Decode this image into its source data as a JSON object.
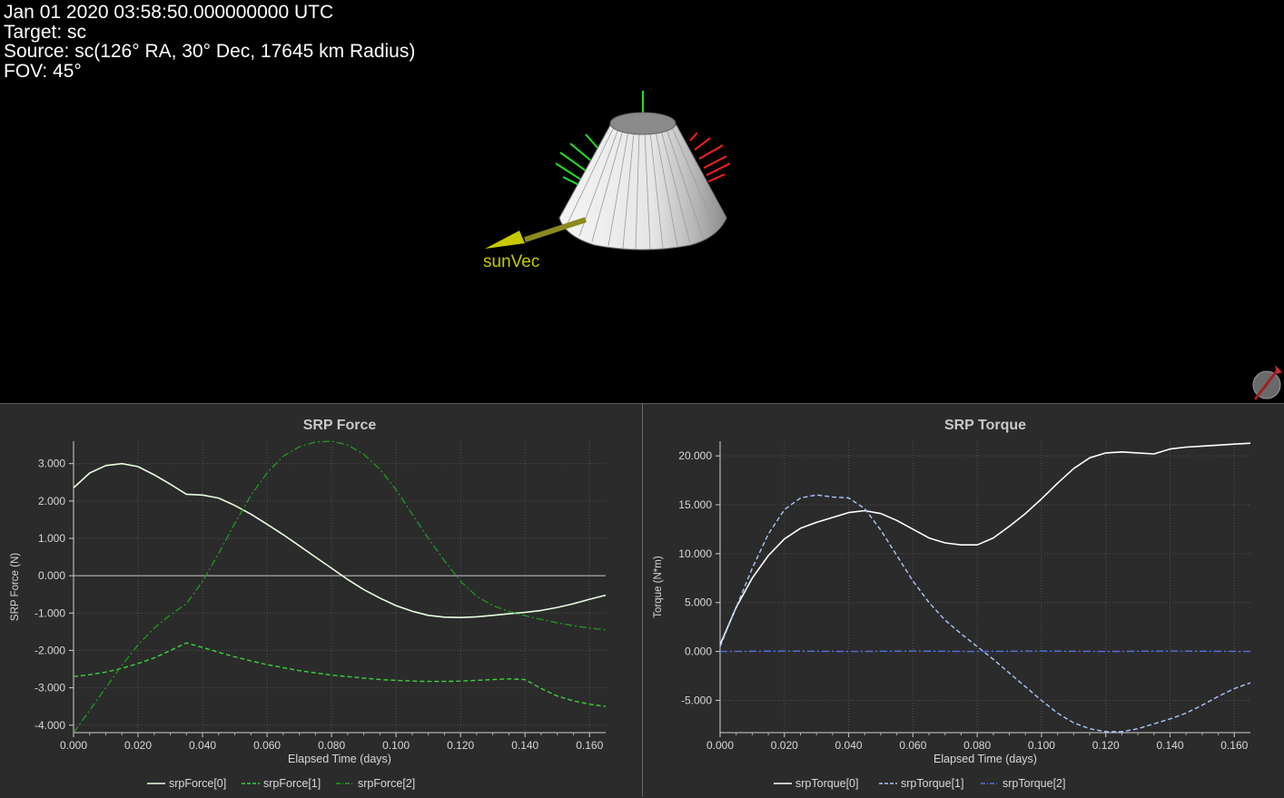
{
  "overlay": {
    "time": "Jan 01 2020 03:58:50.000000000 UTC",
    "target": "Target: sc",
    "source": "Source: sc(126° RA, 30° Dec, 17645 km Radius)",
    "fov": "FOV: 45°"
  },
  "scene": {
    "sun_vector_label": "sunVec",
    "sun_vector_color": "#c8c800",
    "axis_x_color": "#ff2020",
    "axis_y_color": "#20e020",
    "body_color": "#d8d8d8"
  },
  "chart_data": [
    {
      "type": "line",
      "title": "SRP Force",
      "xlabel": "Elapsed Time (days)",
      "ylabel": "SRP Force (N)",
      "xlim": [
        0,
        0.165
      ],
      "ylim": [
        -4.2,
        3.6
      ],
      "xticks": [
        "0.000",
        "0.020",
        "0.040",
        "0.060",
        "0.080",
        "0.100",
        "0.120",
        "0.140",
        "0.160"
      ],
      "yticks": [
        "3.000",
        "2.000",
        "1.000",
        "0.000",
        "-1.000",
        "-2.000",
        "-3.000",
        "-4.000"
      ],
      "ytick_values": [
        3,
        2,
        1,
        0,
        -1,
        -2,
        -3,
        -4
      ],
      "grid": true,
      "legend": "bottom",
      "zero_line": true,
      "series": [
        {
          "name": "srpForce[0]",
          "color": "#e8ffe0",
          "dash": "",
          "width": 1.6,
          "x": [
            0,
            0.005,
            0.01,
            0.015,
            0.02,
            0.025,
            0.03,
            0.035,
            0.04,
            0.045,
            0.05,
            0.055,
            0.06,
            0.065,
            0.07,
            0.075,
            0.08,
            0.085,
            0.09,
            0.095,
            0.1,
            0.105,
            0.11,
            0.115,
            0.12,
            0.125,
            0.13,
            0.135,
            0.14,
            0.145,
            0.15,
            0.155,
            0.16,
            0.165
          ],
          "y": [
            2.35,
            2.75,
            2.95,
            3.0,
            2.92,
            2.7,
            2.45,
            2.18,
            2.16,
            2.08,
            1.88,
            1.65,
            1.38,
            1.1,
            0.8,
            0.5,
            0.2,
            -0.1,
            -0.37,
            -0.6,
            -0.8,
            -0.95,
            -1.06,
            -1.11,
            -1.12,
            -1.1,
            -1.06,
            -1.02,
            -0.98,
            -0.93,
            -0.85,
            -0.75,
            -0.63,
            -0.52
          ]
        },
        {
          "name": "srpForce[1]",
          "color": "#3cd23c",
          "dash": "5,3",
          "width": 1.4,
          "x": [
            0,
            0.005,
            0.01,
            0.015,
            0.02,
            0.025,
            0.03,
            0.035,
            0.04,
            0.045,
            0.05,
            0.055,
            0.06,
            0.065,
            0.07,
            0.075,
            0.08,
            0.085,
            0.09,
            0.095,
            0.1,
            0.105,
            0.11,
            0.115,
            0.12,
            0.125,
            0.13,
            0.135,
            0.14,
            0.145,
            0.15,
            0.155,
            0.16,
            0.165
          ],
          "y": [
            -2.7,
            -2.65,
            -2.58,
            -2.48,
            -2.35,
            -2.2,
            -2.0,
            -1.8,
            -1.92,
            -2.05,
            -2.17,
            -2.28,
            -2.38,
            -2.46,
            -2.54,
            -2.6,
            -2.66,
            -2.7,
            -2.74,
            -2.78,
            -2.8,
            -2.82,
            -2.83,
            -2.83,
            -2.82,
            -2.8,
            -2.78,
            -2.76,
            -2.78,
            -3.02,
            -3.22,
            -3.35,
            -3.44,
            -3.5
          ]
        },
        {
          "name": "srpForce[2]",
          "color": "#1fa31f",
          "dash": "8,3,2,3",
          "width": 1.2,
          "x": [
            0,
            0.005,
            0.01,
            0.015,
            0.02,
            0.025,
            0.03,
            0.035,
            0.04,
            0.045,
            0.05,
            0.055,
            0.06,
            0.065,
            0.07,
            0.075,
            0.08,
            0.085,
            0.09,
            0.095,
            0.1,
            0.105,
            0.11,
            0.115,
            0.12,
            0.125,
            0.13,
            0.135,
            0.14,
            0.145,
            0.15,
            0.155,
            0.16,
            0.165
          ],
          "y": [
            -4.2,
            -3.6,
            -3.0,
            -2.4,
            -1.85,
            -1.4,
            -1.05,
            -0.75,
            -0.15,
            0.6,
            1.4,
            2.15,
            2.75,
            3.2,
            3.45,
            3.58,
            3.6,
            3.5,
            3.25,
            2.85,
            2.3,
            1.65,
            1.0,
            0.4,
            -0.15,
            -0.55,
            -0.8,
            -0.95,
            -1.07,
            -1.17,
            -1.26,
            -1.34,
            -1.4,
            -1.45
          ]
        }
      ]
    },
    {
      "type": "line",
      "title": "SRP Torque",
      "xlabel": "Elapsed Time (days)",
      "ylabel": "Torque (N*m)",
      "xlim": [
        0,
        0.165
      ],
      "ylim": [
        -8.3,
        21.5
      ],
      "xticks": [
        "0.000",
        "0.020",
        "0.040",
        "0.060",
        "0.080",
        "0.100",
        "0.120",
        "0.140",
        "0.160"
      ],
      "yticks": [
        "20.000",
        "15.000",
        "10.000",
        "5.000",
        "0.000",
        "-5.000"
      ],
      "ytick_values": [
        20,
        15,
        10,
        5,
        0,
        -5
      ],
      "grid": true,
      "legend": "bottom",
      "zero_line": false,
      "series": [
        {
          "name": "srpTorque[0]",
          "color": "#ffffff",
          "dash": "",
          "width": 1.6,
          "x": [
            0,
            0.005,
            0.01,
            0.015,
            0.02,
            0.025,
            0.03,
            0.035,
            0.04,
            0.045,
            0.05,
            0.055,
            0.06,
            0.065,
            0.07,
            0.075,
            0.08,
            0.085,
            0.09,
            0.095,
            0.1,
            0.105,
            0.11,
            0.115,
            0.12,
            0.125,
            0.13,
            0.135,
            0.14,
            0.145,
            0.15,
            0.155,
            0.16,
            0.165
          ],
          "y": [
            0.7,
            4.5,
            7.5,
            9.8,
            11.5,
            12.6,
            13.2,
            13.7,
            14.2,
            14.4,
            14.1,
            13.4,
            12.5,
            11.6,
            11.1,
            10.9,
            10.9,
            11.6,
            12.8,
            14.1,
            15.6,
            17.2,
            18.7,
            19.8,
            20.3,
            20.4,
            20.3,
            20.2,
            20.7,
            20.9,
            21.0,
            21.1,
            21.2,
            21.3
          ]
        },
        {
          "name": "srpTorque[1]",
          "color": "#aac8ff",
          "dash": "5,3",
          "width": 1.4,
          "x": [
            0,
            0.005,
            0.01,
            0.015,
            0.02,
            0.025,
            0.03,
            0.035,
            0.04,
            0.045,
            0.05,
            0.055,
            0.06,
            0.065,
            0.07,
            0.075,
            0.08,
            0.085,
            0.09,
            0.095,
            0.1,
            0.105,
            0.11,
            0.115,
            0.12,
            0.125,
            0.13,
            0.135,
            0.14,
            0.145,
            0.15,
            0.155,
            0.16,
            0.165
          ],
          "y": [
            0.5,
            4.5,
            8.5,
            12.0,
            14.5,
            15.7,
            16.0,
            15.8,
            15.7,
            14.6,
            12.4,
            9.8,
            7.2,
            5.0,
            3.2,
            1.8,
            0.5,
            -0.8,
            -2.2,
            -3.6,
            -5.0,
            -6.3,
            -7.3,
            -7.9,
            -8.2,
            -8.2,
            -7.9,
            -7.4,
            -6.9,
            -6.3,
            -5.5,
            -4.6,
            -3.8,
            -3.2
          ]
        },
        {
          "name": "srpTorque[2]",
          "color": "#5070e0",
          "dash": "8,3,2,3",
          "width": 1.4,
          "x": [
            0,
            0.02,
            0.04,
            0.06,
            0.08,
            0.1,
            0.12,
            0.14,
            0.165
          ],
          "y": [
            0.0,
            0.05,
            0.0,
            0.05,
            0.0,
            0.05,
            0.0,
            0.05,
            0.0
          ]
        }
      ]
    }
  ]
}
